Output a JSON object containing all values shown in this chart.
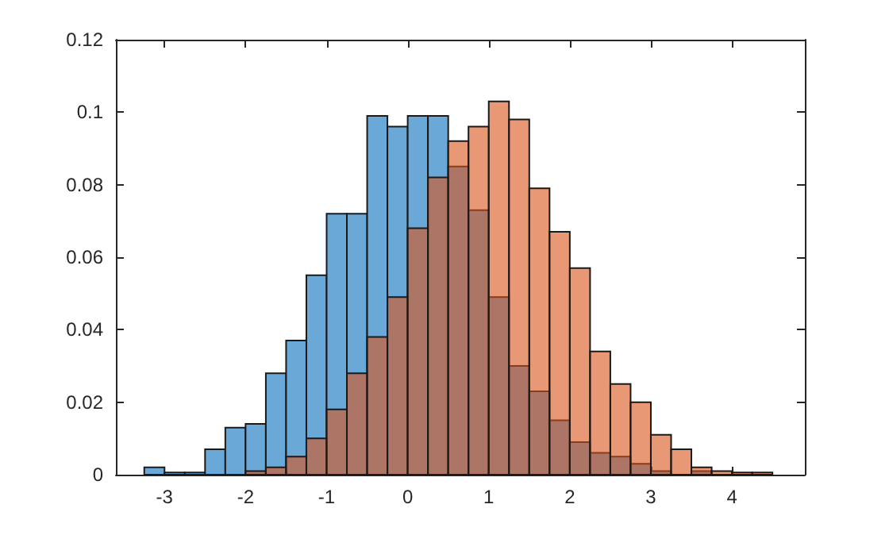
{
  "chart_data": {
    "type": "histogram",
    "bins": [
      -3.25,
      -3,
      -2.75,
      -2.5,
      -2.25,
      -2,
      -1.75,
      -1.5,
      -1.25,
      -1,
      -0.75,
      -0.5,
      -0.25,
      0,
      0.25,
      0.5,
      0.75,
      1,
      1.25,
      1.5,
      1.75,
      2,
      2.25,
      2.5,
      2.75,
      3,
      3.25,
      3.5,
      3.75,
      4,
      4.25,
      4.5
    ],
    "series": [
      {
        "color": "#6aa8d8",
        "values": [
          0.002,
          0.0006,
          0.0006,
          0.007,
          0.013,
          0.014,
          0.028,
          0.037,
          0.055,
          0.072,
          0.072,
          0.099,
          0.096,
          0.099,
          0.099,
          0.085,
          0.073,
          0.049,
          0.03,
          0.023,
          0.015,
          0.009,
          0.006,
          0.005,
          0.003,
          0.001,
          null,
          0.001,
          0,
          0,
          0
        ]
      },
      {
        "color": "#e89875",
        "values": [
          0,
          0,
          0,
          0,
          0,
          0.001,
          0.002,
          0.005,
          0.01,
          0.018,
          0.028,
          0.038,
          0.049,
          0.068,
          0.082,
          0.092,
          0.096,
          0.103,
          0.098,
          0.079,
          0.067,
          0.057,
          0.034,
          0.025,
          0.02,
          0.011,
          0.007,
          0.002,
          0.001,
          0.0006,
          0.0006
        ]
      }
    ],
    "xlim": [
      -3.6,
      4.9
    ],
    "xticks": [
      -3,
      -2,
      -1,
      0,
      1,
      2,
      3,
      4
    ],
    "ylim": [
      0,
      0.12
    ],
    "yticks": [
      0,
      0.02,
      0.04,
      0.06,
      0.08,
      0.1,
      0.12
    ],
    "grid": false
  }
}
